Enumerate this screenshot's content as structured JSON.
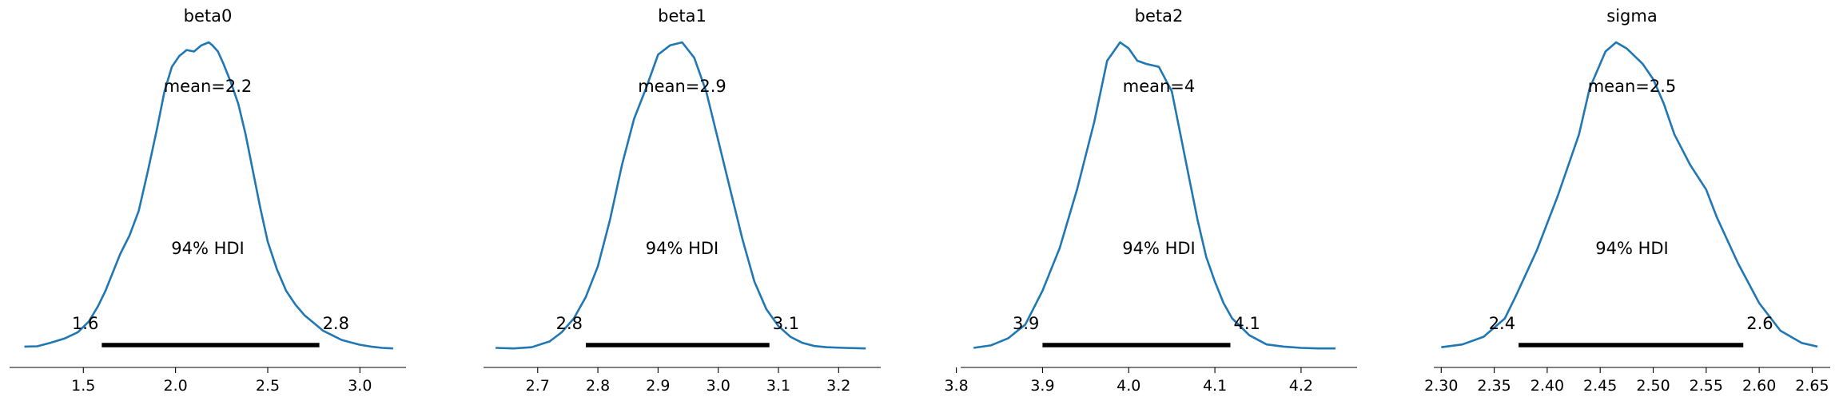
{
  "figure": {
    "line_color": "#1f77b4",
    "hdi_color": "#000000",
    "hdi_label": "94% HDI"
  },
  "chart_data": [
    {
      "type": "area",
      "title": "beta0",
      "mean_label": "mean=2.2",
      "hdi_low_label": "1.6",
      "hdi_high_label": "2.8",
      "hdi": [
        1.6,
        2.78
      ],
      "xlim": [
        1.1,
        3.25
      ],
      "xticks": [
        1.5,
        2.0,
        2.5,
        3.0
      ],
      "xtick_labels": [
        "1.5",
        "2.0",
        "2.5",
        "3.0"
      ],
      "density": {
        "x": [
          1.18,
          1.25,
          1.32,
          1.4,
          1.47,
          1.53,
          1.58,
          1.62,
          1.66,
          1.7,
          1.75,
          1.8,
          1.85,
          1.9,
          1.94,
          1.98,
          2.02,
          2.06,
          2.1,
          2.14,
          2.18,
          2.2,
          2.23,
          2.26,
          2.3,
          2.34,
          2.38,
          2.42,
          2.46,
          2.5,
          2.55,
          2.6,
          2.65,
          2.7,
          2.75,
          2.8,
          2.85,
          2.9,
          2.95,
          3.0,
          3.06,
          3.12,
          3.18
        ],
        "y": [
          0.008,
          0.009,
          0.02,
          0.035,
          0.055,
          0.09,
          0.14,
          0.19,
          0.25,
          0.31,
          0.37,
          0.45,
          0.58,
          0.72,
          0.84,
          0.92,
          0.955,
          0.975,
          0.97,
          0.99,
          1.0,
          0.99,
          0.97,
          0.93,
          0.87,
          0.8,
          0.7,
          0.58,
          0.46,
          0.35,
          0.26,
          0.19,
          0.145,
          0.11,
          0.085,
          0.06,
          0.045,
          0.03,
          0.022,
          0.014,
          0.008,
          0.004,
          0.002
        ]
      }
    },
    {
      "type": "area",
      "title": "beta1",
      "mean_label": "mean=2.9",
      "hdi_low_label": "2.8",
      "hdi_high_label": "3.1",
      "hdi": [
        2.78,
        3.085
      ],
      "xlim": [
        2.61,
        3.27
      ],
      "xticks": [
        2.7,
        2.8,
        2.9,
        3.0,
        3.1,
        3.2
      ],
      "xtick_labels": [
        "2.7",
        "2.8",
        "2.9",
        "3.0",
        "3.1",
        "3.2"
      ],
      "density": {
        "x": [
          2.63,
          2.66,
          2.69,
          2.72,
          2.74,
          2.76,
          2.78,
          2.8,
          2.82,
          2.84,
          2.86,
          2.88,
          2.9,
          2.92,
          2.94,
          2.96,
          2.98,
          3.0,
          3.02,
          3.04,
          3.06,
          3.08,
          3.1,
          3.12,
          3.14,
          3.16,
          3.18,
          3.21,
          3.245
        ],
        "y": [
          0.004,
          0.002,
          0.006,
          0.025,
          0.055,
          0.1,
          0.17,
          0.27,
          0.42,
          0.6,
          0.75,
          0.85,
          0.96,
          0.99,
          1.0,
          0.95,
          0.84,
          0.68,
          0.52,
          0.36,
          0.22,
          0.13,
          0.075,
          0.04,
          0.02,
          0.01,
          0.006,
          0.004,
          0.002
        ]
      }
    },
    {
      "type": "area",
      "title": "beta2",
      "mean_label": "mean=4",
      "hdi_low_label": "3.9",
      "hdi_high_label": "4.1",
      "hdi": [
        3.9,
        4.118
      ],
      "xlim": [
        3.805,
        4.265
      ],
      "xticks": [
        3.8,
        3.9,
        4.0,
        4.1,
        4.2
      ],
      "xtick_labels": [
        "3.8",
        "3.9",
        "4.0",
        "4.1",
        "4.2"
      ],
      "density": {
        "x": [
          3.82,
          3.84,
          3.86,
          3.88,
          3.9,
          3.92,
          3.94,
          3.96,
          3.975,
          3.99,
          4.0,
          4.01,
          4.02,
          4.035,
          4.05,
          4.06,
          4.07,
          4.08,
          4.09,
          4.1,
          4.11,
          4.12,
          4.14,
          4.16,
          4.18,
          4.2,
          4.22,
          4.24
        ],
        "y": [
          0.004,
          0.012,
          0.035,
          0.08,
          0.19,
          0.33,
          0.52,
          0.74,
          0.94,
          1.0,
          0.98,
          0.94,
          0.93,
          0.92,
          0.84,
          0.7,
          0.56,
          0.42,
          0.3,
          0.22,
          0.15,
          0.1,
          0.045,
          0.015,
          0.008,
          0.004,
          0.002,
          0.002
        ]
      }
    },
    {
      "type": "area",
      "title": "sigma",
      "mean_label": "mean=2.5",
      "hdi_low_label": "2.4",
      "hdi_high_label": "2.6",
      "hdi": [
        2.373,
        2.585
      ],
      "xlim": [
        2.293,
        2.667
      ],
      "xticks": [
        2.3,
        2.35,
        2.4,
        2.45,
        2.5,
        2.55,
        2.6,
        2.65
      ],
      "xtick_labels": [
        "2.30",
        "2.35",
        "2.40",
        "2.45",
        "2.50",
        "2.55",
        "2.60",
        "2.65"
      ],
      "density": {
        "x": [
          2.3,
          2.32,
          2.34,
          2.36,
          2.37,
          2.39,
          2.41,
          2.43,
          2.44,
          2.455,
          2.465,
          2.475,
          2.49,
          2.5,
          2.51,
          2.52,
          2.535,
          2.55,
          2.56,
          2.58,
          2.6,
          2.62,
          2.64,
          2.655
        ],
        "y": [
          0.006,
          0.015,
          0.04,
          0.1,
          0.17,
          0.32,
          0.5,
          0.7,
          0.85,
          0.97,
          1.0,
          0.98,
          0.93,
          0.88,
          0.8,
          0.7,
          0.6,
          0.52,
          0.43,
          0.28,
          0.15,
          0.06,
          0.02,
          0.008
        ]
      }
    }
  ]
}
